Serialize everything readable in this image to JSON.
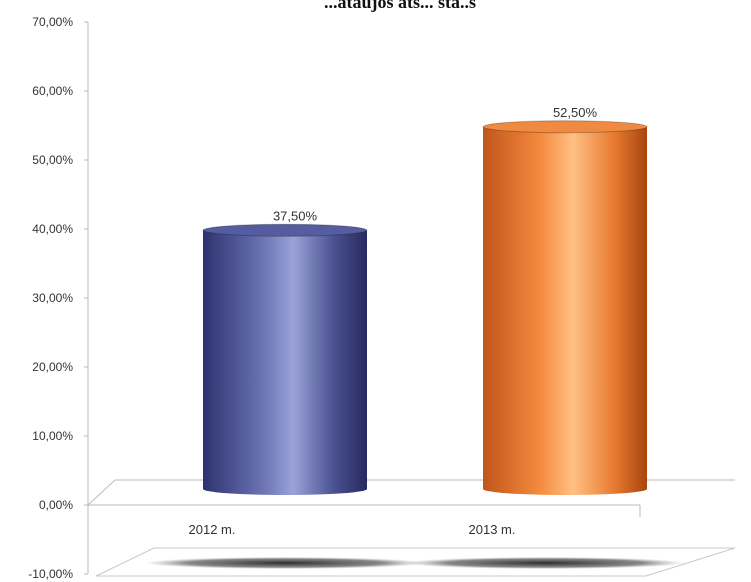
{
  "chart_data": {
    "type": "bar",
    "style": "3d-cylinder",
    "title": "...ataujos ats... sta..s",
    "categories": [
      "2012 m.",
      "2013 m."
    ],
    "values": [
      37.5,
      52.5
    ],
    "data_labels": [
      "37,50%",
      "52,50%"
    ],
    "bar_colors": [
      "#4a5190",
      "#e87a30"
    ],
    "ylim": [
      -10,
      70
    ],
    "yticks": [
      70,
      60,
      50,
      40,
      30,
      20,
      10,
      0,
      -10
    ],
    "ytick_labels": [
      "70,00%",
      "60,00%",
      "50,00%",
      "40,00%",
      "30,00%",
      "20,00%",
      "10,00%",
      "0,00%",
      "-10,00%"
    ],
    "xlabel": "",
    "ylabel": "",
    "grid": false,
    "legend": "none"
  }
}
